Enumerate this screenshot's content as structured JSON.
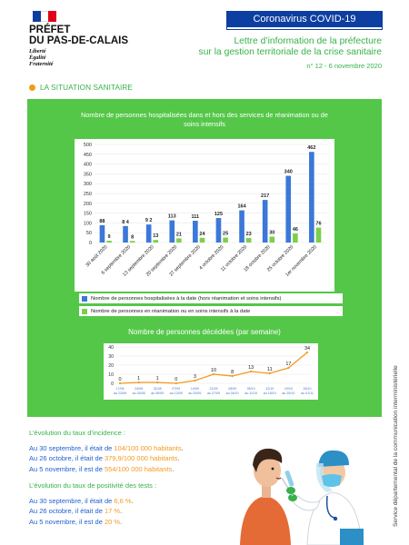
{
  "header": {
    "prefect_title": "PRÉFET",
    "prefect_sub": "DU PAS-DE-CALAIS",
    "motto": [
      "Liberté",
      "Égalité",
      "Fraternité"
    ],
    "banner": "Coronavirus COVID-19",
    "letter_line1": "Lettre d’information de la préfecture",
    "letter_line2": "sur la gestion territoriale de la crise sanitaire",
    "issue": "n° 12 - 6 novembre 2020"
  },
  "section": {
    "title": "LA SITUATION SANITAIRE"
  },
  "chart_data": [
    {
      "type": "bar",
      "title": "Nombre de personnes hospitalisées dans et hors des services de réanimation ou de soins intensifs",
      "categories": [
        "30 août 2020",
        "6 septembre 2020",
        "13 septembre 2020",
        "20 septembre 2020",
        "27 septembre 2020",
        "4 octobre 2020",
        "11 octobre 2020",
        "18 octobre 2020",
        "25 octobre 2020",
        "1er novembre 2020"
      ],
      "series": [
        {
          "name": "Nombre de personnes hospitalisées à la date (hors réanimation et soins intensifs)",
          "values": [
            88,
            84,
            92,
            113,
            111,
            125,
            164,
            217,
            340,
            462
          ],
          "color": "#3b78d8"
        },
        {
          "name": "Nombre de personnes en réanimation ou en soins intensifs à la date",
          "values": [
            9,
            8,
            13,
            21,
            24,
            25,
            23,
            30,
            46,
            76
          ],
          "color": "#7ccf4a"
        }
      ],
      "value_labels": [
        "88",
        "9",
        "8 4",
        "8",
        "9 2",
        "13",
        "113",
        "21",
        "111",
        "24",
        "125",
        "25",
        "164",
        "23",
        "217",
        "30",
        "340",
        "46",
        "462",
        "76"
      ],
      "yticks": [
        "500",
        "450",
        "400",
        "350",
        "300",
        "250",
        "200",
        "150",
        "100",
        "50",
        "0"
      ],
      "ylim": [
        0,
        500
      ]
    },
    {
      "type": "line",
      "title": "Nombre de personnes décédées (par semaine)",
      "x": [
        "17/08 au 23/08",
        "24/08 au 30/08",
        "31/08 au 06/09",
        "07/09 au 13/09",
        "14/09 au 20/09",
        "21/09 au 27/09",
        "28/09 au 04/10",
        "05/10 au 11/10",
        "12/10 au 18/10",
        "19/10 au 25/10",
        "26/10 au 01/11"
      ],
      "values": [
        0,
        1,
        1,
        0,
        3,
        10,
        8,
        13,
        11,
        17,
        34
      ],
      "yticks": [
        "40",
        "30",
        "20",
        "10",
        "0"
      ],
      "ylim": [
        0,
        40
      ],
      "color": "#f39a1c"
    }
  ],
  "incidence": {
    "header": "L’évolution du taux d’incidence :",
    "lines": [
      {
        "pre": "Au 30 septembre, il était de ",
        "hi": "104/100 000 habitants",
        "post": "."
      },
      {
        "pre": "Au 26 octobre, il était de ",
        "hi": "379,9/100 000 habitants",
        "post": "."
      },
      {
        "pre": "Au 5 novembre, il est de ",
        "hi": "554/100 000 habitants",
        "post": "."
      }
    ]
  },
  "positivity": {
    "header": "L’évolution du taux de positivité des tests :",
    "lines": [
      {
        "pre": "Au 30 septembre, il était de ",
        "hi": "6,6 %",
        "post": "."
      },
      {
        "pre": "Au 26 octobre, il était de ",
        "hi": "17 %",
        "post": "."
      },
      {
        "pre": "Au 5 novembre, il est de ",
        "hi": "20 %",
        "post": "."
      }
    ]
  },
  "sidebar_text": "Service départemental de la communication interministérielle",
  "colors": {
    "green": "#54c748",
    "navy": "#0d3ea1",
    "blue": "#3b78d8",
    "orange": "#f39a1c",
    "text_blue": "#1f5fd0"
  }
}
